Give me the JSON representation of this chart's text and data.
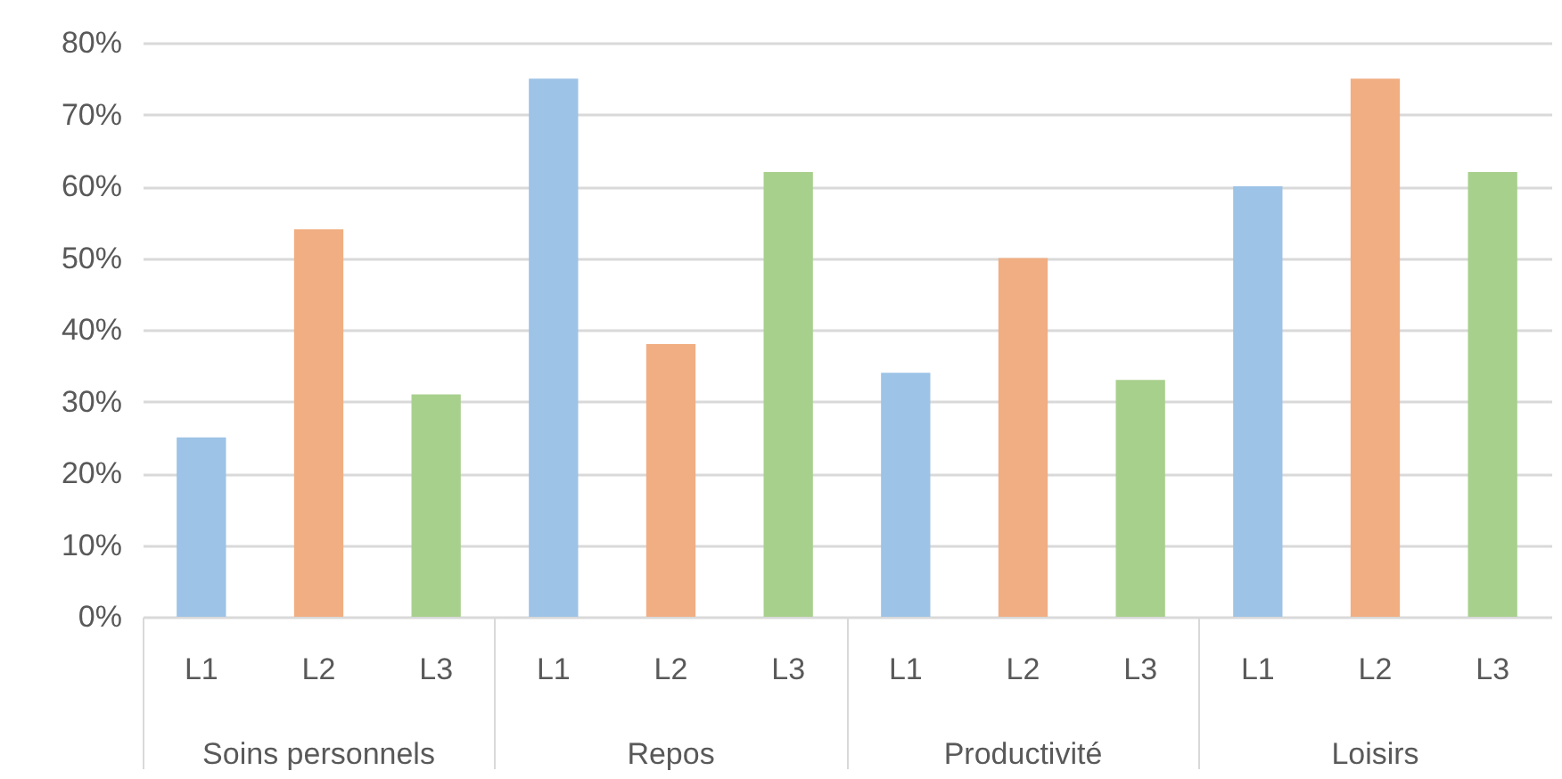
{
  "chart_data": {
    "type": "bar",
    "categories": [
      "Soins personnels",
      "Repos",
      "Productivité",
      "Loisirs"
    ],
    "series": [
      {
        "name": "L1",
        "color": "#9dc3e6",
        "values": [
          25,
          75,
          34,
          60
        ]
      },
      {
        "name": "L2",
        "color": "#f0ae82",
        "values": [
          54,
          38,
          50,
          75
        ]
      },
      {
        "name": "L3",
        "color": "#a8d08d",
        "values": [
          31,
          62,
          33,
          62
        ]
      }
    ],
    "ylim": [
      0,
      80
    ],
    "yticks": [
      {
        "value": 0,
        "label": "0%"
      },
      {
        "value": 10,
        "label": "10%"
      },
      {
        "value": 20,
        "label": "20%"
      },
      {
        "value": 30,
        "label": "30%"
      },
      {
        "value": 40,
        "label": "40%"
      },
      {
        "value": 50,
        "label": "50%"
      },
      {
        "value": 60,
        "label": "60%"
      },
      {
        "value": 70,
        "label": "70%"
      },
      {
        "value": 80,
        "label": "80%"
      }
    ],
    "grid": "y",
    "legend": false
  }
}
